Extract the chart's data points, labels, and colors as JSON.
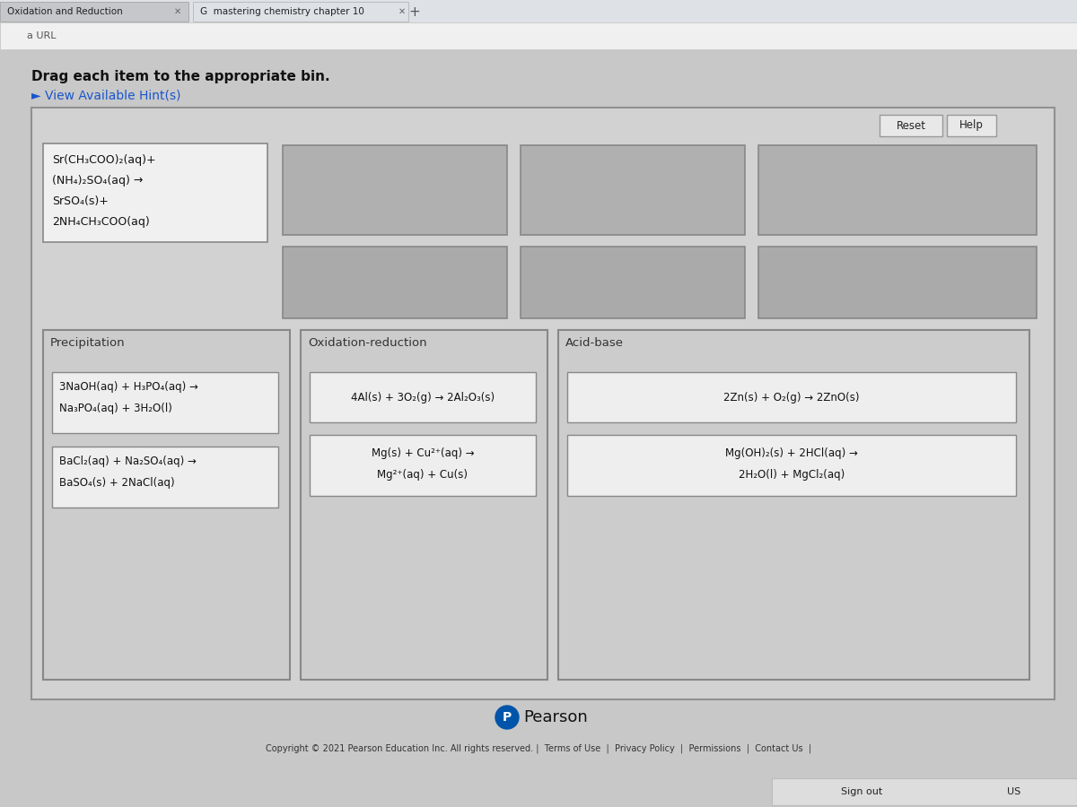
{
  "bg_outer": "#c5c5c5",
  "bg_main": "#c8c8c8",
  "browser_tab1": "Oxidation and Reduction",
  "browser_tab2": "G  mastering chemistry chapter 10",
  "url_text": "a URL",
  "instruction": "Drag each item to the appropriate bin.",
  "hint": "► View Available Hint(s)",
  "reset": "Reset",
  "help": "Help",
  "panel_bg": "#d0d0d0",
  "panel_border": "#888888",
  "bin_color": "#aaaaaa",
  "bin_border": "#777777",
  "col_bg": "#c8c8c8",
  "col_border": "#888888",
  "card_bg": "#efefef",
  "card_border": "#888888",
  "source_card_bg": "#f0f0f0",
  "source_card_border": "#888888",
  "col_labels": [
    "Precipitation",
    "Oxidation-reduction",
    "Acid-base"
  ],
  "source_lines": [
    "Sr(CH₃COO)₂(aq)+",
    "(NH₄)₂SO₄(aq) →",
    "SrSO₄(s)+",
    "2NH₄CH₃COO(aq)"
  ],
  "precip_item1_lines": [
    "3NaOH(aq) + H₃PO₄(aq) →",
    "Na₃PO₄(aq) + 3H₂O(l)"
  ],
  "precip_item2_lines": [
    "BaCl₂(aq) + Na₂SO₄(aq) →",
    "BaSO₄(s) + 2NaCl(aq)"
  ],
  "ox_item1_lines": [
    "4Al(s) + 3O₂(g) → 2Al₂O₃(s)"
  ],
  "ox_item2_lines": [
    "Mg(s) + Cu²⁺(aq) →",
    "Mg²⁺(aq) + Cu(s)"
  ],
  "acid_item1_lines": [
    "2Zn(s) + O₂(g) → 2ZnO(s)"
  ],
  "acid_item2_lines": [
    "Mg(OH)₂(s) + 2HCl(aq) →",
    "2H₂O(l) + MgCl₂(aq)"
  ],
  "pearson": "Pearson",
  "footer": "Copyright © 2021 Pearson Education Inc. All rights reserved. |  Terms of Use  |  Privacy Policy  |  Permissions  |  Contact Us  |",
  "signout": "Sign out",
  "region": "US"
}
